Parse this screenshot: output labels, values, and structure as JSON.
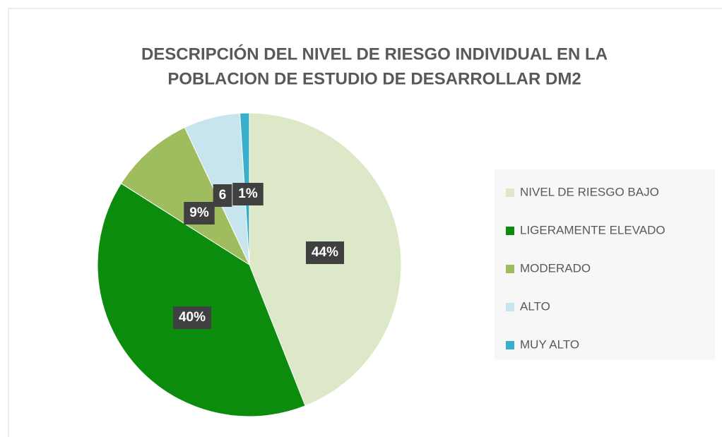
{
  "chart_data": {
    "type": "pie",
    "title": [
      "DESCRIPCIÓN DEL NIVEL DE RIESGO INDIVIDUAL  EN LA",
      "POBLACION DE ESTUDIO DE DESARROLLAR DM2"
    ],
    "categories": [
      "NIVEL DE RIESGO BAJO",
      "LIGERAMENTE ELEVADO",
      "MODERADO",
      "ALTO",
      "MUY ALTO"
    ],
    "values": [
      44,
      40,
      9,
      6,
      1
    ],
    "value_labels": [
      "44%",
      "40%",
      "9%",
      "6",
      "1%"
    ],
    "colors": [
      "#dde8c8",
      "#0c8c0c",
      "#9fbd5f",
      "#c6e5ef",
      "#3aafcb"
    ],
    "legend": "right"
  }
}
